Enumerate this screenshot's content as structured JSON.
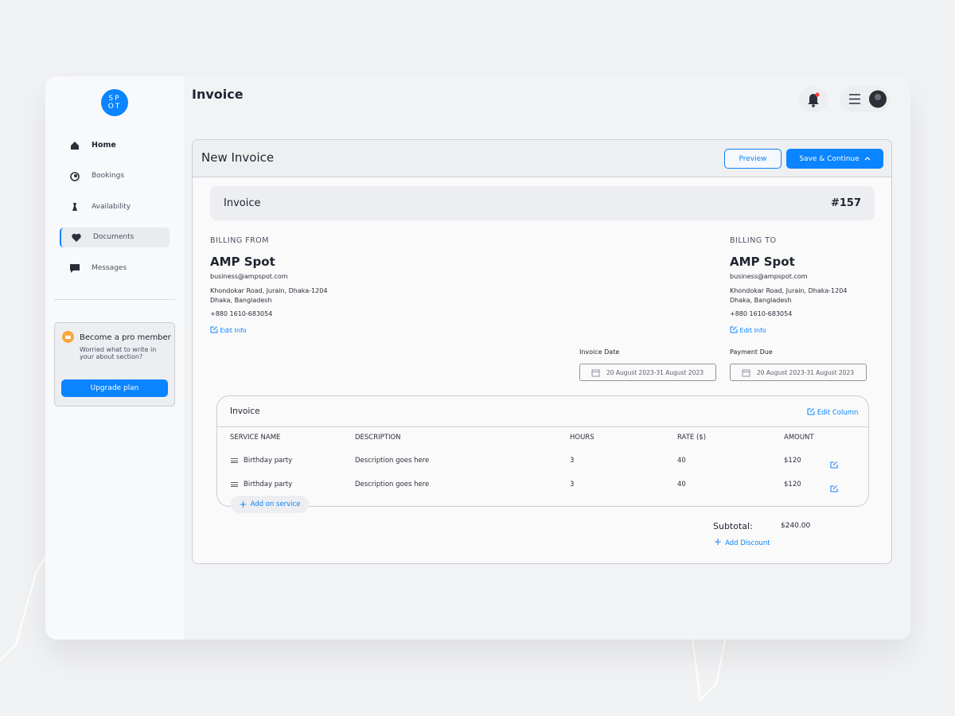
{
  "logo": [
    "SP",
    "OT"
  ],
  "page_title": "Invoice",
  "nav": [
    "Home",
    "Bookings",
    "Availability",
    "Documents",
    "Messages"
  ],
  "nav_selected": 3,
  "promo": {
    "title": "Become a pro member",
    "text": "Worried what to write in your about section?",
    "button": "Upgrade plan"
  },
  "panel": {
    "title": "New Invoice",
    "preview": "Preview",
    "save": "Save & Continue"
  },
  "invoice_header": {
    "label": "Invoice",
    "number": "#157"
  },
  "billing": [
    {
      "heading": "BILLING FROM",
      "name": "AMP Spot",
      "email": "business@ampspot.com",
      "address": [
        "Khondokar Road, Jurain, Dhaka-1204",
        "Dhaka, Bangladesh"
      ],
      "phone": "+880 1610-683054",
      "edit": "Edit Info"
    },
    {
      "heading": "BILLING TO",
      "name": "AMP Spot",
      "email": "business@ampspot.com",
      "address": [
        "Khondokar Road, Jurain, Dhaka-1204",
        "Dhaka, Bangladesh"
      ],
      "phone": "+880 1610-683054",
      "edit": "Edit Info"
    }
  ],
  "dates": [
    {
      "label": "Invoice Date",
      "value": "20 August 2023-31 August 2023"
    },
    {
      "label": "Payment Due",
      "value": "20 August 2023-31 August 2023"
    }
  ],
  "table": {
    "title": "Invoice",
    "edit": "Edit Column",
    "columns": [
      "SERVICE NAME",
      "DESCRIPTION",
      "HOURS",
      "RATE ($)",
      "AMOUNT"
    ],
    "rows": [
      [
        "Birthday party",
        "Description goes here",
        3,
        40,
        "$120"
      ],
      [
        "Birthday party",
        "Description goes here",
        3,
        40,
        "$120"
      ]
    ],
    "add": "Add on service"
  },
  "subtotal": {
    "label": "Subtotal:",
    "value": "$240.00",
    "add": "Add Discount"
  }
}
